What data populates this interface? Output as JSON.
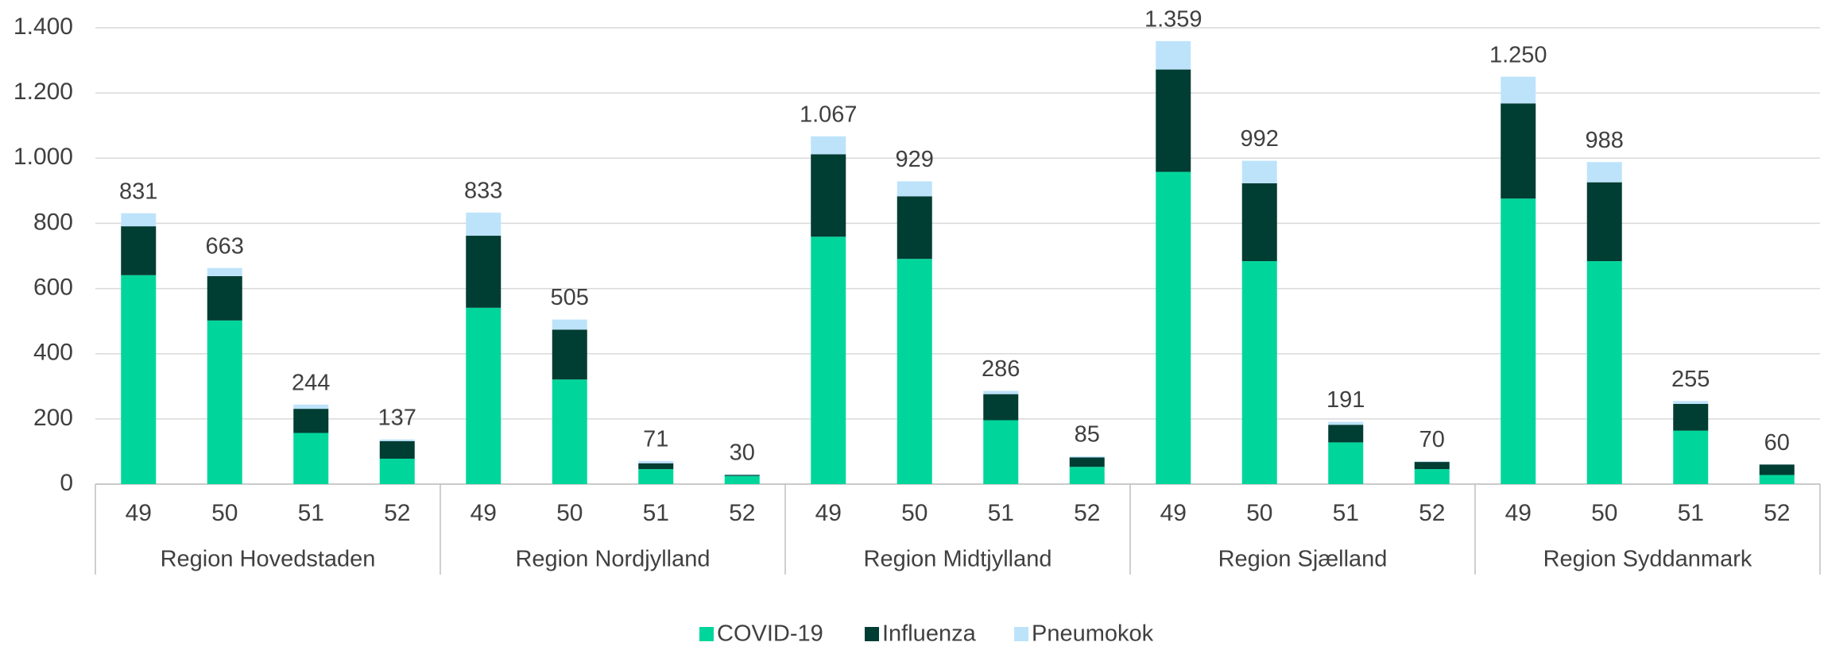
{
  "chart_data": {
    "type": "stacked-bar",
    "categories": [
      "49",
      "50",
      "51",
      "52",
      "49",
      "50",
      "51",
      "52",
      "49",
      "50",
      "51",
      "52",
      "49",
      "50",
      "51",
      "52",
      "49",
      "50",
      "51",
      "52"
    ],
    "groups": [
      "Region Hovedstaden",
      "Region Nordjylland",
      "Region Midtjylland",
      "Region Sjælland",
      "Region Syddanmark"
    ],
    "series": [
      {
        "name": "COVID-19",
        "color": "#00d69b",
        "values": [
          641,
          502,
          157,
          78,
          541,
          321,
          46,
          25,
          759,
          691,
          196,
          53,
          958,
          684,
          128,
          46,
          876,
          684,
          164,
          28
        ]
      },
      {
        "name": "Influenza",
        "color": "#003d33",
        "values": [
          150,
          136,
          74,
          54,
          221,
          153,
          18,
          3,
          253,
          192,
          80,
          29,
          314,
          239,
          54,
          22,
          292,
          242,
          82,
          32
        ]
      },
      {
        "name": "Pneumokok",
        "color": "#bde3fb",
        "values": [
          40,
          25,
          13,
          5,
          71,
          31,
          7,
          2,
          55,
          46,
          10,
          3,
          87,
          69,
          9,
          2,
          82,
          62,
          9,
          0
        ]
      }
    ],
    "totals": {
      "values": [
        831,
        663,
        244,
        137,
        833,
        505,
        71,
        30,
        1067,
        929,
        286,
        85,
        1359,
        992,
        191,
        70,
        1250,
        988,
        255,
        60
      ],
      "value_labels": [
        "831",
        "663",
        "244",
        "137",
        "833",
        "505",
        "71",
        "30",
        "1.067",
        "929",
        "286",
        "85",
        "1.359",
        "992",
        "191",
        "70",
        "1.250",
        "988",
        "255",
        "60"
      ]
    },
    "ylim": [
      0,
      1400
    ],
    "yticks": [
      0,
      200,
      400,
      600,
      800,
      {
        "value": 1000,
        "label": "1.000"
      },
      {
        "value": 1200,
        "label": "1.200"
      },
      {
        "value": 1400,
        "label": "1.400"
      }
    ],
    "grid": true,
    "legend": "bottom"
  }
}
